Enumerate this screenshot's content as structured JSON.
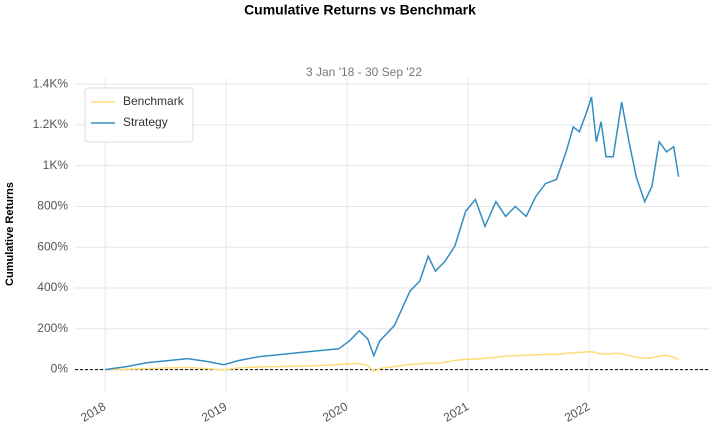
{
  "chart_data": {
    "type": "line",
    "title": "Cumulative Returns vs Benchmark",
    "subtitle": "3 Jan '18 - 30 Sep '22",
    "y_label": "Cumulative Returns",
    "x": [
      2018.0,
      2018.18,
      2018.35,
      2018.52,
      2018.68,
      2018.85,
      2018.98,
      2019.1,
      2019.27,
      2019.43,
      2019.6,
      2019.77,
      2019.93,
      2020.02,
      2020.1,
      2020.17,
      2020.22,
      2020.27,
      2020.39,
      2020.52,
      2020.6,
      2020.67,
      2020.73,
      2020.81,
      2020.89,
      2020.98,
      2021.06,
      2021.14,
      2021.23,
      2021.31,
      2021.39,
      2021.48,
      2021.56,
      2021.64,
      2021.73,
      2021.81,
      2021.87,
      2021.92,
      2021.98,
      2022.02,
      2022.06,
      2022.1,
      2022.14,
      2022.2,
      2022.27,
      2022.33,
      2022.39,
      2022.46,
      2022.52,
      2022.58,
      2022.64,
      2022.7,
      2022.74
    ],
    "series": [
      {
        "name": "Benchmark",
        "color": "#fedd78",
        "values": [
          0,
          2,
          5,
          8,
          10,
          5,
          -2,
          8,
          13,
          15,
          17,
          20,
          25,
          28,
          30,
          20,
          -10,
          5,
          15,
          25,
          28,
          32,
          30,
          35,
          45,
          50,
          52,
          55,
          60,
          65,
          68,
          70,
          72,
          75,
          74,
          80,
          82,
          84,
          86,
          88,
          82,
          78,
          75,
          80,
          78,
          68,
          60,
          55,
          58,
          65,
          70,
          60,
          50
        ]
      },
      {
        "name": "Strategy",
        "color": "#348dc1",
        "values": [
          0,
          15,
          34,
          44,
          54,
          39,
          24,
          44,
          63,
          73,
          83,
          93,
          102,
          141,
          190,
          151,
          68,
          141,
          215,
          385,
          434,
          556,
          483,
          532,
          605,
          776,
          834,
          702,
          824,
          751,
          800,
          751,
          849,
          912,
          932,
          1068,
          1190,
          1166,
          1263,
          1337,
          1117,
          1215,
          1044,
          1044,
          1312,
          1117,
          946,
          824,
          898,
          1117,
          1068,
          1093,
          946
        ]
      }
    ],
    "xlim": [
      2017.75,
      2023.0
    ],
    "xticks": [
      2018,
      2019,
      2020,
      2021,
      2022
    ],
    "ylim": [
      -110,
      1430
    ],
    "yticks": [
      {
        "value": 0,
        "label": "0%"
      },
      {
        "value": 200,
        "label": "200%"
      },
      {
        "value": 400,
        "label": "400%"
      },
      {
        "value": 600,
        "label": "600%"
      },
      {
        "value": 800,
        "label": "800%"
      },
      {
        "value": 1000,
        "label": "1K%"
      },
      {
        "value": 1200,
        "label": "1.2K%"
      },
      {
        "value": 1400,
        "label": "1.4K%"
      }
    ],
    "grid": true,
    "legend": "upper left"
  }
}
